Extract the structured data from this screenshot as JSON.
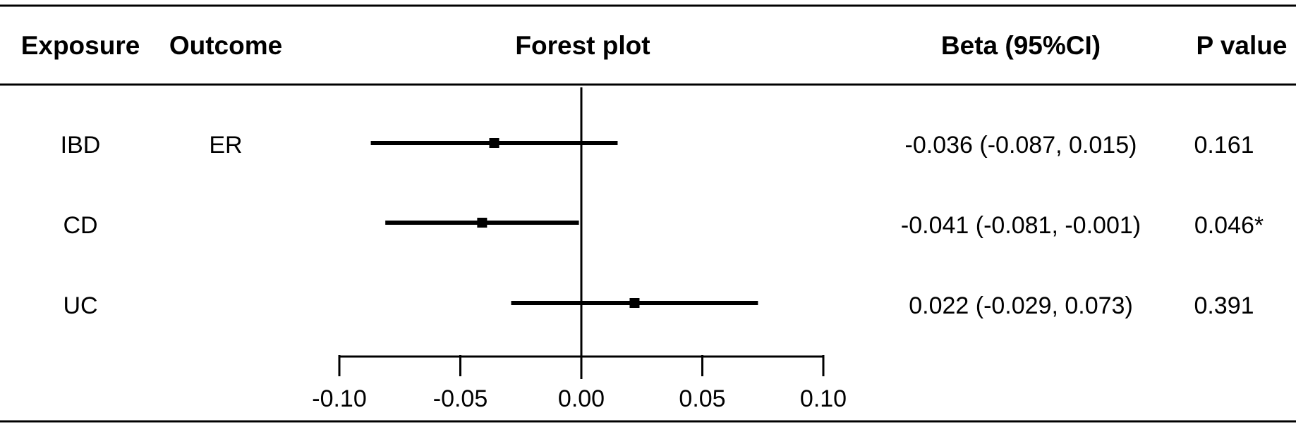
{
  "table": {
    "headers": {
      "exposure": "Exposure",
      "outcome": "Outcome",
      "forest": "Forest plot",
      "beta": "Beta (95%CI)",
      "p": "P value"
    },
    "rows": [
      {
        "exposure": "IBD",
        "outcome": "ER",
        "beta_text": "-0.036 (-0.087, 0.015)",
        "p": "0.161"
      },
      {
        "exposure": "CD",
        "outcome": "",
        "beta_text": "-0.041 (-0.081, -0.001)",
        "p": "0.046*"
      },
      {
        "exposure": "UC",
        "outcome": "",
        "beta_text": "0.022 (-0.029, 0.073)",
        "p": "0.391"
      }
    ]
  },
  "chart_data": {
    "type": "forest",
    "title": "Forest plot",
    "xlabel": "",
    "xlim": [
      -0.1,
      0.1
    ],
    "ticks": [
      -0.1,
      -0.05,
      0.0,
      0.05,
      0.1
    ],
    "tick_labels": [
      "-0.10",
      "-0.05",
      "0.00",
      "0.05",
      "0.10"
    ],
    "reference_line": 0.0,
    "series": [
      {
        "label": "IBD",
        "estimate": -0.036,
        "lower": -0.087,
        "upper": 0.015
      },
      {
        "label": "CD",
        "estimate": -0.041,
        "lower": -0.081,
        "upper": -0.001
      },
      {
        "label": "UC",
        "estimate": 0.022,
        "lower": -0.029,
        "upper": 0.073
      }
    ],
    "colors": {
      "ink": "#000000",
      "background": "#ffffff"
    }
  }
}
